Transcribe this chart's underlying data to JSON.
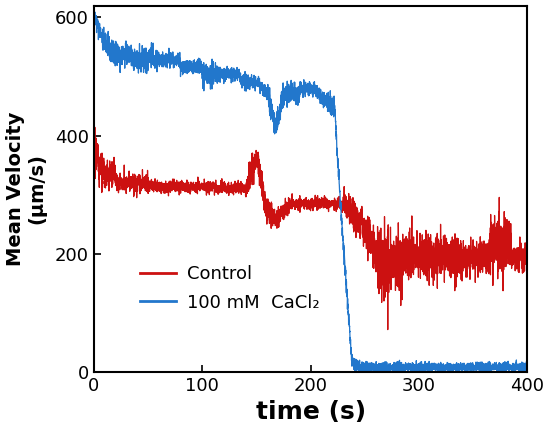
{
  "title": "",
  "xlabel": "time (s)",
  "ylabel_line1": "Mean Velocity",
  "ylabel_line2": "(μm/s)",
  "xlim": [
    0,
    400
  ],
  "ylim": [
    0,
    620
  ],
  "xticks": [
    0,
    100,
    200,
    300,
    400
  ],
  "yticks": [
    0,
    200,
    400,
    600
  ],
  "legend_labels": [
    "Control",
    "100 mM  CaCl₂"
  ],
  "control_color": "#cc1111",
  "cacl2_color": "#2277cc",
  "line_width": 0.9,
  "figsize": [
    5.5,
    4.3
  ],
  "dpi": 100,
  "xlabel_fontsize": 18,
  "ylabel_fontsize": 14,
  "tick_fontsize": 13
}
